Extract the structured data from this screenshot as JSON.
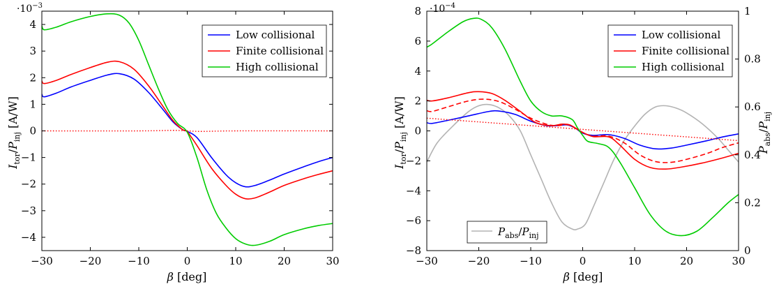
{
  "chart_data": [
    {
      "type": "line",
      "xlabel": "β [deg]",
      "ylabel": "I_tor / P_inj [A/W]",
      "y_multiplier": "·10^-3",
      "xlim": [
        -30,
        30
      ],
      "ylim": [
        -4.5,
        4.5
      ],
      "x_ticks": [
        -30,
        -20,
        -10,
        0,
        10,
        20,
        30
      ],
      "y_ticks": [
        -4,
        -3,
        -2,
        -1,
        0,
        1,
        2,
        3,
        4
      ],
      "legend_position": "top-right",
      "series": [
        {
          "name": "Low collisional",
          "color": "#0000ff",
          "style": "solid",
          "points": [
            [
              -30,
              1.38
            ],
            [
              -29.5,
              1.28
            ],
            [
              -27,
              1.42
            ],
            [
              -24,
              1.65
            ],
            [
              -20,
              1.9
            ],
            [
              -16.5,
              2.1
            ],
            [
              -14,
              2.15
            ],
            [
              -11,
              1.95
            ],
            [
              -8,
              1.45
            ],
            [
              -5,
              0.8
            ],
            [
              -3,
              0.35
            ],
            [
              -1,
              0.05
            ],
            [
              0,
              -0.02
            ],
            [
              2,
              -0.25
            ],
            [
              5,
              -1.0
            ],
            [
              8,
              -1.65
            ],
            [
              10,
              -1.95
            ],
            [
              12,
              -2.1
            ],
            [
              14,
              -2.05
            ],
            [
              17,
              -1.85
            ],
            [
              20,
              -1.62
            ],
            [
              24,
              -1.35
            ],
            [
              27,
              -1.16
            ],
            [
              30,
              -1.0
            ]
          ]
        },
        {
          "name": "Finite collisional",
          "color": "#ff0000",
          "style": "solid",
          "points": [
            [
              -30,
              1.88
            ],
            [
              -29.5,
              1.78
            ],
            [
              -27,
              1.9
            ],
            [
              -24,
              2.12
            ],
            [
              -20,
              2.38
            ],
            [
              -16.5,
              2.58
            ],
            [
              -14,
              2.6
            ],
            [
              -11,
              2.32
            ],
            [
              -8,
              1.7
            ],
            [
              -5,
              0.92
            ],
            [
              -3,
              0.4
            ],
            [
              -1,
              0.05
            ],
            [
              0,
              -0.03
            ],
            [
              2,
              -0.55
            ],
            [
              5,
              -1.4
            ],
            [
              8,
              -2.05
            ],
            [
              10,
              -2.38
            ],
            [
              12,
              -2.55
            ],
            [
              14,
              -2.52
            ],
            [
              17,
              -2.3
            ],
            [
              20,
              -2.05
            ],
            [
              24,
              -1.8
            ],
            [
              27,
              -1.64
            ],
            [
              30,
              -1.5
            ]
          ]
        },
        {
          "name": "High collisional",
          "color": "#00cc00",
          "style": "solid",
          "points": [
            [
              -30,
              3.95
            ],
            [
              -29.5,
              3.8
            ],
            [
              -27,
              3.9
            ],
            [
              -24,
              4.1
            ],
            [
              -20,
              4.3
            ],
            [
              -16.5,
              4.4
            ],
            [
              -14,
              4.35
            ],
            [
              -12,
              4.05
            ],
            [
              -10,
              3.4
            ],
            [
              -8,
              2.5
            ],
            [
              -6,
              1.6
            ],
            [
              -4,
              0.8
            ],
            [
              -2,
              0.28
            ],
            [
              0,
              -0.05
            ],
            [
              2,
              -1.0
            ],
            [
              4,
              -2.2
            ],
            [
              6,
              -3.1
            ],
            [
              8,
              -3.65
            ],
            [
              10,
              -4.05
            ],
            [
              12,
              -4.25
            ],
            [
              14,
              -4.3
            ],
            [
              17,
              -4.15
            ],
            [
              20,
              -3.9
            ],
            [
              24,
              -3.68
            ],
            [
              27,
              -3.56
            ],
            [
              30,
              -3.48
            ]
          ]
        },
        {
          "color": "#ff0000",
          "style": "dotted",
          "points": [
            [
              -30,
              0.0
            ],
            [
              -10,
              0.0
            ],
            [
              -3,
              0.02
            ],
            [
              0,
              0.0
            ],
            [
              3,
              -0.02
            ],
            [
              10,
              0.0
            ],
            [
              30,
              0.0
            ]
          ]
        }
      ]
    },
    {
      "type": "line",
      "xlabel": "β [deg]",
      "ylabel": "I_tor / P_inj [A/W]",
      "y2label": "P_abs / P_inj",
      "y_multiplier": "·10^-4",
      "xlim": [
        -30,
        30
      ],
      "ylim": [
        -8,
        8
      ],
      "y2lim": [
        0,
        1
      ],
      "x_ticks": [
        -30,
        -20,
        -10,
        0,
        10,
        20,
        30
      ],
      "y_ticks": [
        -8,
        -6,
        -4,
        -2,
        0,
        2,
        4,
        6,
        8
      ],
      "y2_ticks": [
        0,
        0.2,
        0.4,
        0.6,
        0.8,
        1
      ],
      "legend_position": "top-right",
      "legend2_position": "bottom-left",
      "series": [
        {
          "name": "Low collisional",
          "color": "#0000ff",
          "style": "solid",
          "points": [
            [
              -30,
              0.55
            ],
            [
              -29,
              0.5
            ],
            [
              -26,
              0.7
            ],
            [
              -22,
              1.0
            ],
            [
              -18,
              1.3
            ],
            [
              -16,
              1.32
            ],
            [
              -13,
              1.1
            ],
            [
              -10,
              0.65
            ],
            [
              -7,
              0.35
            ],
            [
              -5,
              0.35
            ],
            [
              -3,
              0.4
            ],
            [
              -1.5,
              0.2
            ],
            [
              0,
              -0.15
            ],
            [
              2,
              -0.3
            ],
            [
              5,
              -0.25
            ],
            [
              8,
              -0.5
            ],
            [
              11,
              -0.95
            ],
            [
              14,
              -1.2
            ],
            [
              17,
              -1.15
            ],
            [
              20,
              -0.95
            ],
            [
              24,
              -0.65
            ],
            [
              27,
              -0.4
            ],
            [
              30,
              -0.2
            ]
          ]
        },
        {
          "name": "Finite collisional",
          "color": "#ff0000",
          "style": "solid",
          "points": [
            [
              -30,
              2.05
            ],
            [
              -29,
              2.0
            ],
            [
              -26,
              2.2
            ],
            [
              -22,
              2.55
            ],
            [
              -20,
              2.62
            ],
            [
              -17.5,
              2.5
            ],
            [
              -15,
              2.05
            ],
            [
              -12,
              1.3
            ],
            [
              -9,
              0.55
            ],
            [
              -6,
              0.35
            ],
            [
              -4,
              0.45
            ],
            [
              -2.5,
              0.4
            ],
            [
              -1,
              0.1
            ],
            [
              0,
              -0.1
            ],
            [
              2,
              -0.38
            ],
            [
              5,
              -0.4
            ],
            [
              7,
              -0.9
            ],
            [
              10,
              -1.9
            ],
            [
              13,
              -2.45
            ],
            [
              16,
              -2.55
            ],
            [
              19,
              -2.42
            ],
            [
              23,
              -2.15
            ],
            [
              27,
              -1.8
            ],
            [
              30,
              -1.5
            ]
          ]
        },
        {
          "color": "#ff0000",
          "style": "dashed",
          "points": [
            [
              -30,
              1.35
            ],
            [
              -29,
              1.3
            ],
            [
              -26,
              1.6
            ],
            [
              -22,
              2.0
            ],
            [
              -19,
              2.12
            ],
            [
              -16,
              1.95
            ],
            [
              -13,
              1.45
            ],
            [
              -10,
              0.85
            ],
            [
              -7,
              0.45
            ],
            [
              -5,
              0.35
            ],
            [
              -3,
              0.42
            ],
            [
              -1.5,
              0.2
            ],
            [
              0,
              -0.12
            ],
            [
              2,
              -0.35
            ],
            [
              5,
              -0.35
            ],
            [
              8,
              -0.8
            ],
            [
              11,
              -1.6
            ],
            [
              14,
              -2.05
            ],
            [
              17,
              -2.1
            ],
            [
              20,
              -1.9
            ],
            [
              24,
              -1.5
            ],
            [
              27,
              -1.1
            ],
            [
              30,
              -0.8
            ]
          ]
        },
        {
          "name": "High collisional",
          "color": "#00cc00",
          "style": "solid",
          "points": [
            [
              -30,
              5.6
            ],
            [
              -29,
              5.8
            ],
            [
              -26,
              6.6
            ],
            [
              -23,
              7.3
            ],
            [
              -21,
              7.52
            ],
            [
              -19.5,
              7.45
            ],
            [
              -17.5,
              6.9
            ],
            [
              -15,
              5.5
            ],
            [
              -12,
              3.3
            ],
            [
              -10,
              2.0
            ],
            [
              -8,
              1.3
            ],
            [
              -6,
              1.0
            ],
            [
              -4,
              1.0
            ],
            [
              -2,
              0.75
            ],
            [
              -1,
              0.2
            ],
            [
              0,
              -0.3
            ],
            [
              1,
              -0.7
            ],
            [
              3,
              -0.85
            ],
            [
              5,
              -1.1
            ],
            [
              7,
              -2.0
            ],
            [
              10,
              -3.8
            ],
            [
              13,
              -5.6
            ],
            [
              16,
              -6.7
            ],
            [
              19,
              -7.0
            ],
            [
              22,
              -6.7
            ],
            [
              25,
              -5.8
            ],
            [
              28,
              -4.8
            ],
            [
              30,
              -4.25
            ]
          ]
        },
        {
          "color": "#ff0000",
          "style": "dotted",
          "points": [
            [
              -30,
              0.85
            ],
            [
              -20,
              0.6
            ],
            [
              -10,
              0.35
            ],
            [
              0,
              0.1
            ],
            [
              10,
              -0.15
            ],
            [
              20,
              -0.4
            ],
            [
              30,
              -0.65
            ]
          ]
        },
        {
          "name": "P_abs / P_inj",
          "axis": "right",
          "color": "#b3b3b3",
          "style": "solid",
          "points": [
            [
              -30,
              0.37
            ],
            [
              -28,
              0.45
            ],
            [
              -25,
              0.52
            ],
            [
              -22,
              0.58
            ],
            [
              -20,
              0.605
            ],
            [
              -18,
              0.61
            ],
            [
              -16,
              0.595
            ],
            [
              -14,
              0.56
            ],
            [
              -12,
              0.5
            ],
            [
              -10,
              0.4
            ],
            [
              -8,
              0.3
            ],
            [
              -6,
              0.2
            ],
            [
              -4,
              0.12
            ],
            [
              -2,
              0.09
            ],
            [
              -1,
              0.09
            ],
            [
              0.5,
              0.11
            ],
            [
              2,
              0.18
            ],
            [
              4,
              0.28
            ],
            [
              6,
              0.38
            ],
            [
              8,
              0.46
            ],
            [
              10,
              0.52
            ],
            [
              12,
              0.57
            ],
            [
              14,
              0.6
            ],
            [
              16,
              0.605
            ],
            [
              18,
              0.595
            ],
            [
              20,
              0.575
            ],
            [
              23,
              0.53
            ],
            [
              26,
              0.47
            ],
            [
              28,
              0.42
            ],
            [
              30,
              0.37
            ]
          ]
        }
      ]
    }
  ]
}
